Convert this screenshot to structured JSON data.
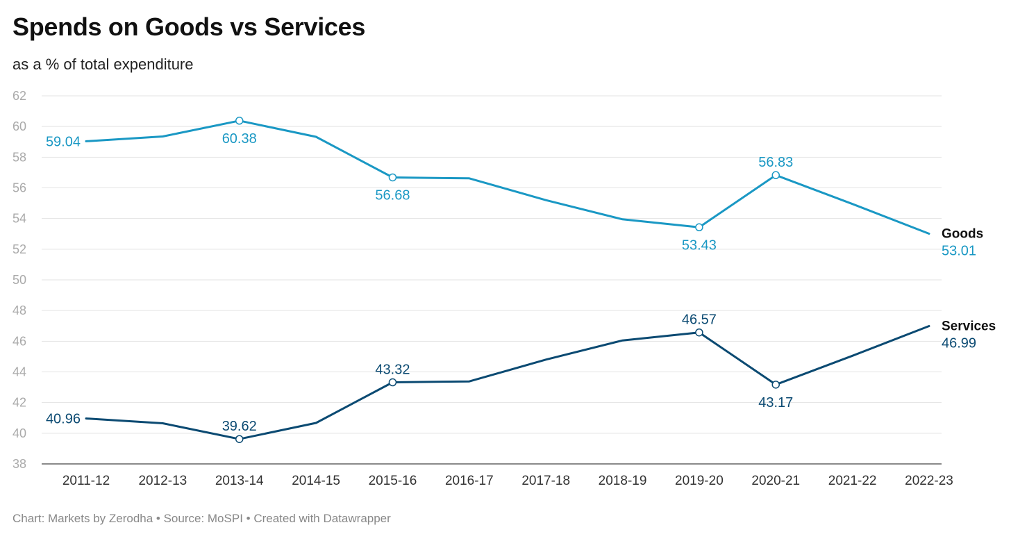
{
  "title": "Spends on Goods vs Services",
  "subtitle": "as a % of total expenditure",
  "footer": "Chart: Markets by Zerodha • Source: MoSPI • Created with Datawrapper",
  "chart_data": {
    "type": "line",
    "title": "Spends on Goods vs Services",
    "subtitle": "as a % of total expenditure",
    "xlabel": "",
    "ylabel": "",
    "categories": [
      "2011-12",
      "2012-13",
      "2013-14",
      "2014-15",
      "2015-16",
      "2016-17",
      "2017-18",
      "2018-19",
      "2019-20",
      "2020-21",
      "2021-22",
      "2022-23"
    ],
    "ylim": [
      38,
      62
    ],
    "yticks": [
      38,
      40,
      42,
      44,
      46,
      48,
      50,
      52,
      54,
      56,
      58,
      60,
      62
    ],
    "grid": true,
    "legend": "series names labelled at line ends (right)",
    "series": [
      {
        "name": "Goods",
        "color": "#1a98c4",
        "values": [
          59.04,
          59.35,
          60.38,
          59.33,
          56.68,
          56.62,
          55.2,
          53.95,
          53.43,
          56.83,
          54.95,
          53.01
        ],
        "labeled_points": [
          {
            "index": 0,
            "label": "59.04",
            "marker": false,
            "pos": "left"
          },
          {
            "index": 2,
            "label": "60.38",
            "marker": true,
            "pos": "below"
          },
          {
            "index": 4,
            "label": "56.68",
            "marker": true,
            "pos": "below"
          },
          {
            "index": 8,
            "label": "53.43",
            "marker": true,
            "pos": "below"
          },
          {
            "index": 9,
            "label": "56.83",
            "marker": true,
            "pos": "above"
          },
          {
            "index": 11,
            "label": "53.01",
            "marker": false,
            "pos": "end"
          }
        ]
      },
      {
        "name": "Services",
        "color": "#0b4a72",
        "values": [
          40.96,
          40.65,
          39.62,
          40.67,
          43.32,
          43.38,
          44.8,
          46.05,
          46.57,
          43.17,
          45.05,
          46.99
        ],
        "labeled_points": [
          {
            "index": 0,
            "label": "40.96",
            "marker": false,
            "pos": "left"
          },
          {
            "index": 2,
            "label": "39.62",
            "marker": true,
            "pos": "above"
          },
          {
            "index": 4,
            "label": "43.32",
            "marker": true,
            "pos": "above"
          },
          {
            "index": 8,
            "label": "46.57",
            "marker": true,
            "pos": "above"
          },
          {
            "index": 9,
            "label": "43.17",
            "marker": true,
            "pos": "below"
          },
          {
            "index": 11,
            "label": "46.99",
            "marker": false,
            "pos": "end"
          }
        ]
      }
    ]
  }
}
